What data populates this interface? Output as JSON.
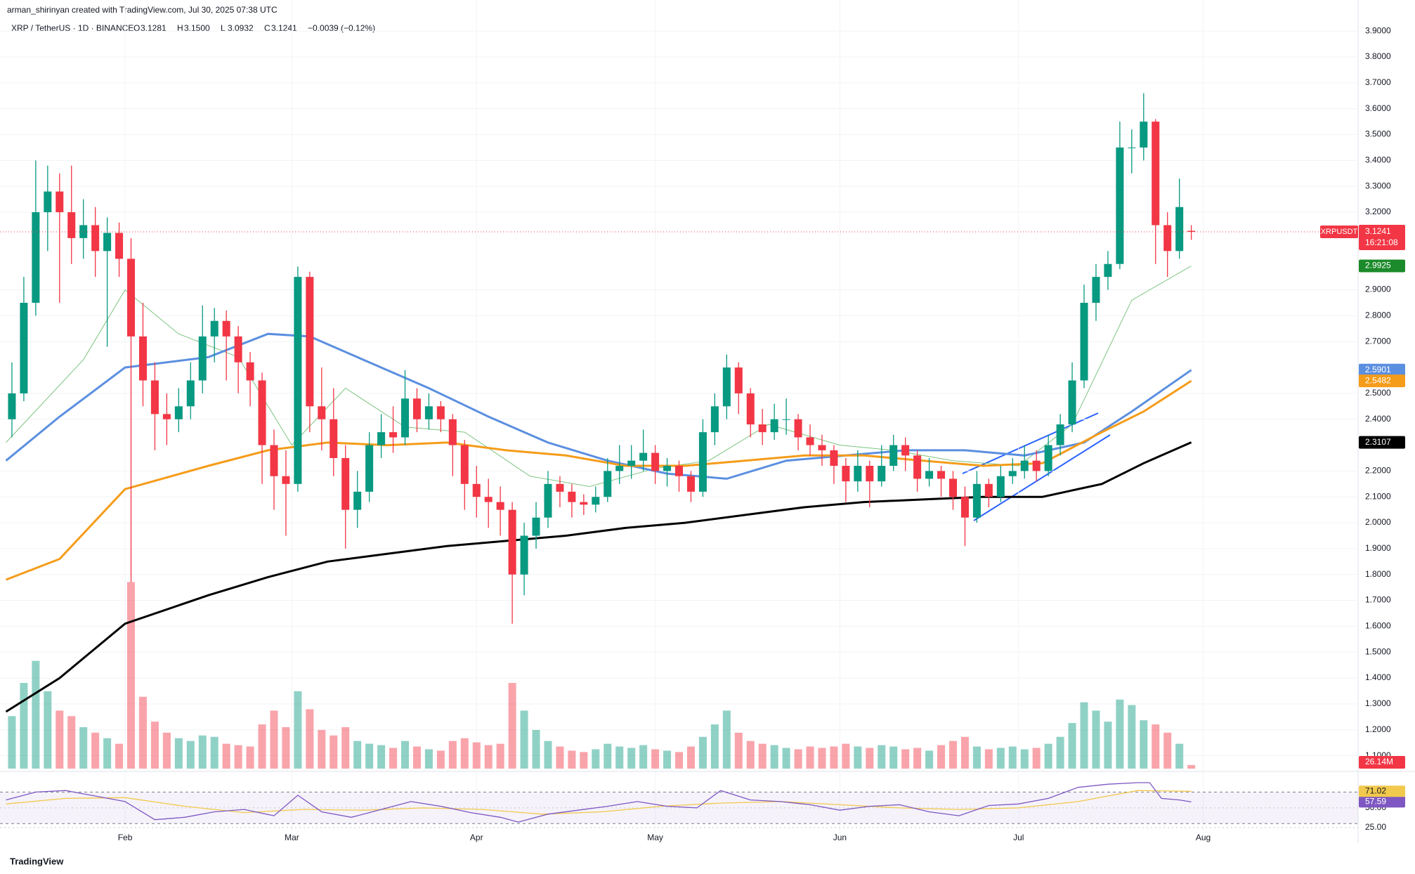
{
  "header": {
    "credit": "arman_shirinyan created with TradingView.com, Jul 30, 2025 07:38 UTC",
    "symbol": "XRP / TetherUS · 1D · BINANCE",
    "ohlc": [
      [
        "O",
        "3.1281"
      ],
      [
        "H",
        "3.1500"
      ],
      [
        "L",
        "3.0932"
      ],
      [
        "C",
        "3.1241"
      ]
    ],
    "change": "−0.0039 (−0.12%)"
  },
  "footer": {
    "brand": "TradingView"
  },
  "chart_data": {
    "type": "candlestick",
    "symbol_tag": "XRPUSDT",
    "countdown": "16:21:08",
    "up_color": "#089981",
    "down_color": "#f23645",
    "grid": true,
    "xlim": [
      10,
      238
    ],
    "xticks": [
      {
        "value": 31,
        "label": "Feb"
      },
      {
        "value": 59,
        "label": "Mar"
      },
      {
        "value": 90,
        "label": "Apr"
      },
      {
        "value": 120,
        "label": "May"
      },
      {
        "value": 151,
        "label": "Jun"
      },
      {
        "value": 181,
        "label": "Jul"
      },
      {
        "value": 212,
        "label": "Aug"
      }
    ],
    "ylim": [
      1.05,
      4.02
    ],
    "yticks": [
      {
        "value": 1.1,
        "label": "1.1000"
      },
      {
        "value": 1.2,
        "label": "1.2000"
      },
      {
        "value": 1.3,
        "label": "1.3000"
      },
      {
        "value": 1.4,
        "label": "1.4000"
      },
      {
        "value": 1.5,
        "label": "1.5000"
      },
      {
        "value": 1.6,
        "label": "1.6000"
      },
      {
        "value": 1.7,
        "label": "1.7000"
      },
      {
        "value": 1.8,
        "label": "1.8000"
      },
      {
        "value": 1.9,
        "label": "1.9000"
      },
      {
        "value": 2.0,
        "label": "2.0000"
      },
      {
        "value": 2.1,
        "label": "2.1000"
      },
      {
        "value": 2.2,
        "label": "2.2000"
      },
      {
        "value": 2.4,
        "label": "2.4000"
      },
      {
        "value": 2.5,
        "label": "2.5000"
      },
      {
        "value": 2.7,
        "label": "2.7000"
      },
      {
        "value": 2.8,
        "label": "2.8000"
      },
      {
        "value": 2.9,
        "label": "2.9000"
      },
      {
        "value": 3.2,
        "label": "3.2000"
      },
      {
        "value": 3.3,
        "label": "3.3000"
      },
      {
        "value": 3.4,
        "label": "3.4000"
      },
      {
        "value": 3.5,
        "label": "3.5000"
      },
      {
        "value": 3.6,
        "label": "3.6000"
      },
      {
        "value": 3.7,
        "label": "3.7000"
      },
      {
        "value": 3.8,
        "label": "3.8000"
      },
      {
        "value": 3.9,
        "label": "3.9000"
      }
    ],
    "x": [
      12,
      14,
      16,
      18,
      20,
      22,
      24,
      26,
      28,
      30,
      32,
      34,
      36,
      38,
      40,
      42,
      44,
      46,
      48,
      50,
      52,
      54,
      56,
      58,
      60,
      62,
      64,
      66,
      68,
      70,
      72,
      74,
      76,
      78,
      80,
      82,
      84,
      86,
      88,
      90,
      92,
      94,
      96,
      98,
      100,
      102,
      104,
      106,
      108,
      110,
      112,
      114,
      116,
      118,
      120,
      122,
      124,
      126,
      128,
      130,
      132,
      134,
      136,
      138,
      140,
      142,
      144,
      146,
      148,
      150,
      152,
      154,
      156,
      158,
      160,
      162,
      164,
      166,
      168,
      170,
      172,
      174,
      176,
      178,
      180,
      182,
      184,
      186,
      188,
      190,
      192,
      194,
      196,
      198,
      200,
      202,
      204,
      206,
      208,
      210
    ],
    "ohlc": [
      [
        2.4,
        2.62,
        2.33,
        2.5
      ],
      [
        2.5,
        2.95,
        2.47,
        2.85
      ],
      [
        2.85,
        3.4,
        2.8,
        3.2
      ],
      [
        3.2,
        3.38,
        3.05,
        3.28
      ],
      [
        3.28,
        3.35,
        2.85,
        3.2
      ],
      [
        3.2,
        3.38,
        3.0,
        3.1
      ],
      [
        3.1,
        3.25,
        3.02,
        3.15
      ],
      [
        3.15,
        3.22,
        2.95,
        3.05
      ],
      [
        3.05,
        3.18,
        2.68,
        3.12
      ],
      [
        3.12,
        3.16,
        2.95,
        3.02
      ],
      [
        3.02,
        3.1,
        1.77,
        2.72
      ],
      [
        2.72,
        2.85,
        2.45,
        2.55
      ],
      [
        2.55,
        2.62,
        2.28,
        2.42
      ],
      [
        2.42,
        2.5,
        2.3,
        2.4
      ],
      [
        2.4,
        2.52,
        2.35,
        2.45
      ],
      [
        2.45,
        2.62,
        2.4,
        2.55
      ],
      [
        2.55,
        2.84,
        2.5,
        2.72
      ],
      [
        2.72,
        2.83,
        2.62,
        2.78
      ],
      [
        2.78,
        2.82,
        2.55,
        2.72
      ],
      [
        2.72,
        2.76,
        2.5,
        2.62
      ],
      [
        2.62,
        2.66,
        2.45,
        2.55
      ],
      [
        2.55,
        2.58,
        2.15,
        2.3
      ],
      [
        2.3,
        2.36,
        2.05,
        2.18
      ],
      [
        2.18,
        2.28,
        1.95,
        2.15
      ],
      [
        2.15,
        2.99,
        2.12,
        2.95
      ],
      [
        2.95,
        2.97,
        2.35,
        2.45
      ],
      [
        2.45,
        2.6,
        2.28,
        2.4
      ],
      [
        2.4,
        2.52,
        2.18,
        2.25
      ],
      [
        2.25,
        2.3,
        1.9,
        2.05
      ],
      [
        2.05,
        2.2,
        1.98,
        2.12
      ],
      [
        2.12,
        2.35,
        2.08,
        2.3
      ],
      [
        2.3,
        2.42,
        2.25,
        2.35
      ],
      [
        2.35,
        2.45,
        2.27,
        2.33
      ],
      [
        2.33,
        2.59,
        2.3,
        2.48
      ],
      [
        2.48,
        2.52,
        2.35,
        2.4
      ],
      [
        2.4,
        2.5,
        2.36,
        2.45
      ],
      [
        2.45,
        2.47,
        2.35,
        2.4
      ],
      [
        2.4,
        2.42,
        2.18,
        2.3
      ],
      [
        2.3,
        2.32,
        2.05,
        2.15
      ],
      [
        2.15,
        2.22,
        2.02,
        2.1
      ],
      [
        2.1,
        2.17,
        1.98,
        2.08
      ],
      [
        2.08,
        2.14,
        1.95,
        2.05
      ],
      [
        2.05,
        2.08,
        1.61,
        1.8
      ],
      [
        1.8,
        2.0,
        1.72,
        1.95
      ],
      [
        1.95,
        2.08,
        1.9,
        2.02
      ],
      [
        2.02,
        2.2,
        1.98,
        2.15
      ],
      [
        2.15,
        2.18,
        2.06,
        2.12
      ],
      [
        2.12,
        2.15,
        2.02,
        2.08
      ],
      [
        2.08,
        2.11,
        2.03,
        2.07
      ],
      [
        2.07,
        2.14,
        2.04,
        2.1
      ],
      [
        2.1,
        2.25,
        2.08,
        2.2
      ],
      [
        2.2,
        2.3,
        2.15,
        2.22
      ],
      [
        2.22,
        2.3,
        2.17,
        2.24
      ],
      [
        2.24,
        2.36,
        2.2,
        2.27
      ],
      [
        2.27,
        2.3,
        2.15,
        2.2
      ],
      [
        2.2,
        2.25,
        2.14,
        2.22
      ],
      [
        2.22,
        2.24,
        2.12,
        2.18
      ],
      [
        2.18,
        2.2,
        2.08,
        2.12
      ],
      [
        2.12,
        2.4,
        2.1,
        2.35
      ],
      [
        2.35,
        2.5,
        2.3,
        2.45
      ],
      [
        2.45,
        2.65,
        2.4,
        2.6
      ],
      [
        2.6,
        2.62,
        2.42,
        2.5
      ],
      [
        2.5,
        2.52,
        2.33,
        2.38
      ],
      [
        2.38,
        2.44,
        2.3,
        2.35
      ],
      [
        2.35,
        2.46,
        2.32,
        2.4
      ],
      [
        2.4,
        2.48,
        2.34,
        2.4
      ],
      [
        2.4,
        2.42,
        2.28,
        2.33
      ],
      [
        2.33,
        2.38,
        2.26,
        2.3
      ],
      [
        2.3,
        2.34,
        2.22,
        2.28
      ],
      [
        2.28,
        2.3,
        2.15,
        2.22
      ],
      [
        2.22,
        2.25,
        2.08,
        2.16
      ],
      [
        2.16,
        2.28,
        2.12,
        2.22
      ],
      [
        2.22,
        2.24,
        2.06,
        2.16
      ],
      [
        2.16,
        2.3,
        2.14,
        2.22
      ],
      [
        2.22,
        2.34,
        2.2,
        2.3
      ],
      [
        2.3,
        2.33,
        2.2,
        2.26
      ],
      [
        2.26,
        2.28,
        2.12,
        2.17
      ],
      [
        2.17,
        2.25,
        2.14,
        2.2
      ],
      [
        2.2,
        2.22,
        2.1,
        2.17
      ],
      [
        2.17,
        2.2,
        2.05,
        2.1
      ],
      [
        2.1,
        2.14,
        1.91,
        2.02
      ],
      [
        2.02,
        2.2,
        2.0,
        2.15
      ],
      [
        2.15,
        2.17,
        2.06,
        2.1
      ],
      [
        2.1,
        2.22,
        2.08,
        2.18
      ],
      [
        2.18,
        2.25,
        2.15,
        2.2
      ],
      [
        2.2,
        2.3,
        2.17,
        2.24
      ],
      [
        2.24,
        2.28,
        2.16,
        2.2
      ],
      [
        2.2,
        2.34,
        2.18,
        2.3
      ],
      [
        2.3,
        2.42,
        2.26,
        2.38
      ],
      [
        2.38,
        2.62,
        2.35,
        2.55
      ],
      [
        2.55,
        2.92,
        2.52,
        2.85
      ],
      [
        2.85,
        3.0,
        2.78,
        2.95
      ],
      [
        2.95,
        3.05,
        2.9,
        3.0
      ],
      [
        3.0,
        3.55,
        2.98,
        3.45
      ],
      [
        3.45,
        3.52,
        3.35,
        3.45
      ],
      [
        3.45,
        3.66,
        3.4,
        3.55
      ],
      [
        3.55,
        3.56,
        3.0,
        3.15
      ],
      [
        3.15,
        3.2,
        2.95,
        3.05
      ],
      [
        3.05,
        3.33,
        3.02,
        3.22
      ],
      [
        3.1281,
        3.15,
        3.0932,
        3.1241
      ]
    ],
    "volume_lim": [
      0,
      1500
    ],
    "volume": [
      380,
      620,
      780,
      560,
      420,
      380,
      300,
      260,
      220,
      180,
      1350,
      520,
      340,
      260,
      220,
      200,
      240,
      230,
      180,
      170,
      160,
      320,
      420,
      300,
      560,
      430,
      280,
      240,
      300,
      200,
      180,
      170,
      150,
      200,
      160,
      140,
      130,
      200,
      220,
      190,
      170,
      180,
      620,
      420,
      280,
      200,
      160,
      130,
      120,
      140,
      180,
      160,
      150,
      170,
      140,
      130,
      120,
      160,
      230,
      320,
      420,
      260,
      200,
      180,
      170,
      150,
      140,
      160,
      150,
      160,
      180,
      160,
      150,
      170,
      160,
      140,
      150,
      130,
      170,
      200,
      230,
      160,
      140,
      150,
      160,
      140,
      150,
      180,
      230,
      330,
      480,
      420,
      340,
      500,
      460,
      350,
      320,
      260,
      180,
      26.14
    ],
    "last_volume_label": "26.14M",
    "moving_averages": [
      {
        "color": "#7cc47f",
        "width": 1,
        "x": [
          11,
          24,
          31,
          40,
          50,
          59,
          68,
          78,
          88,
          99,
          109,
          120,
          129,
          139,
          151,
          160,
          170,
          181,
          190,
          200,
          210
        ],
        "values": [
          2.31,
          2.63,
          2.9,
          2.73,
          2.64,
          2.3,
          2.52,
          2.37,
          2.35,
          2.18,
          2.14,
          2.21,
          2.24,
          2.38,
          2.3,
          2.28,
          2.24,
          2.22,
          2.38,
          2.86,
          2.9925
        ],
        "tag_color": "#1b8a2a"
      },
      {
        "color": "#5b8fe0",
        "width": 3,
        "x": [
          11,
          20,
          31,
          45,
          55,
          62,
          72,
          82,
          92,
          102,
          112,
          122,
          132,
          142,
          152,
          162,
          172,
          182,
          192,
          200,
          210
        ],
        "values": [
          2.24,
          2.41,
          2.6,
          2.64,
          2.73,
          2.72,
          2.62,
          2.52,
          2.41,
          2.31,
          2.24,
          2.19,
          2.17,
          2.24,
          2.26,
          2.28,
          2.28,
          2.26,
          2.31,
          2.43,
          2.5901
        ],
        "tag_color": "#5b8fe0"
      },
      {
        "color": "#f59c1a",
        "width": 3,
        "x": [
          11,
          20,
          31,
          45,
          55,
          65,
          75,
          85,
          95,
          105,
          115,
          125,
          135,
          145,
          155,
          165,
          175,
          185,
          195,
          202,
          210
        ],
        "values": [
          1.78,
          1.86,
          2.13,
          2.22,
          2.28,
          2.31,
          2.3,
          2.31,
          2.28,
          2.26,
          2.22,
          2.22,
          2.24,
          2.26,
          2.26,
          2.24,
          2.22,
          2.23,
          2.35,
          2.43,
          2.5482
        ],
        "tag_color": "#f59c1a"
      },
      {
        "color": "#000000",
        "width": 3,
        "x": [
          11,
          20,
          31,
          45,
          55,
          65,
          75,
          85,
          95,
          105,
          115,
          125,
          135,
          145,
          155,
          165,
          175,
          185,
          195,
          202,
          210
        ],
        "values": [
          1.27,
          1.4,
          1.61,
          1.72,
          1.79,
          1.85,
          1.88,
          1.91,
          1.93,
          1.95,
          1.98,
          2.0,
          2.03,
          2.06,
          2.08,
          2.09,
          2.1,
          2.1,
          2.15,
          2.23,
          2.3107
        ],
        "tag_color": "#000000"
      }
    ],
    "rsi": {
      "ylim": [
        16,
        90
      ],
      "yticks": [
        {
          "value": 25,
          "label": "25.00"
        },
        {
          "value": 50,
          "label": "50.00"
        }
      ],
      "bands": [
        30,
        70
      ],
      "series": [
        {
          "color": "#7e57c2",
          "tag_label": "57.59",
          "x": [
            11,
            16,
            21,
            26,
            31,
            36,
            41,
            46,
            51,
            56,
            60,
            64,
            69,
            74,
            79,
            84,
            89,
            94,
            97,
            102,
            107,
            112,
            117,
            122,
            127,
            131,
            136,
            141,
            146,
            151,
            156,
            161,
            166,
            171,
            176,
            181,
            186,
            191,
            196,
            201,
            203,
            205,
            208,
            210
          ],
          "values": [
            60,
            70,
            72,
            65,
            58,
            35,
            38,
            45,
            48,
            40,
            66,
            45,
            38,
            48,
            58,
            52,
            44,
            38,
            32,
            42,
            47,
            52,
            58,
            52,
            50,
            72,
            60,
            58,
            54,
            47,
            52,
            54,
            45,
            40,
            53,
            55,
            62,
            76,
            80,
            82,
            82,
            62,
            60,
            57.59
          ]
        },
        {
          "color": "#f2c94c",
          "tag_label": "71.02",
          "x": [
            11,
            21,
            31,
            41,
            51,
            61,
            71,
            81,
            91,
            101,
            111,
            121,
            131,
            141,
            151,
            161,
            171,
            181,
            191,
            201,
            210
          ],
          "values": [
            55,
            62,
            63,
            52,
            44,
            48,
            47,
            50,
            48,
            42,
            45,
            52,
            56,
            58,
            54,
            50,
            48,
            50,
            58,
            72,
            71.02
          ]
        }
      ]
    }
  }
}
